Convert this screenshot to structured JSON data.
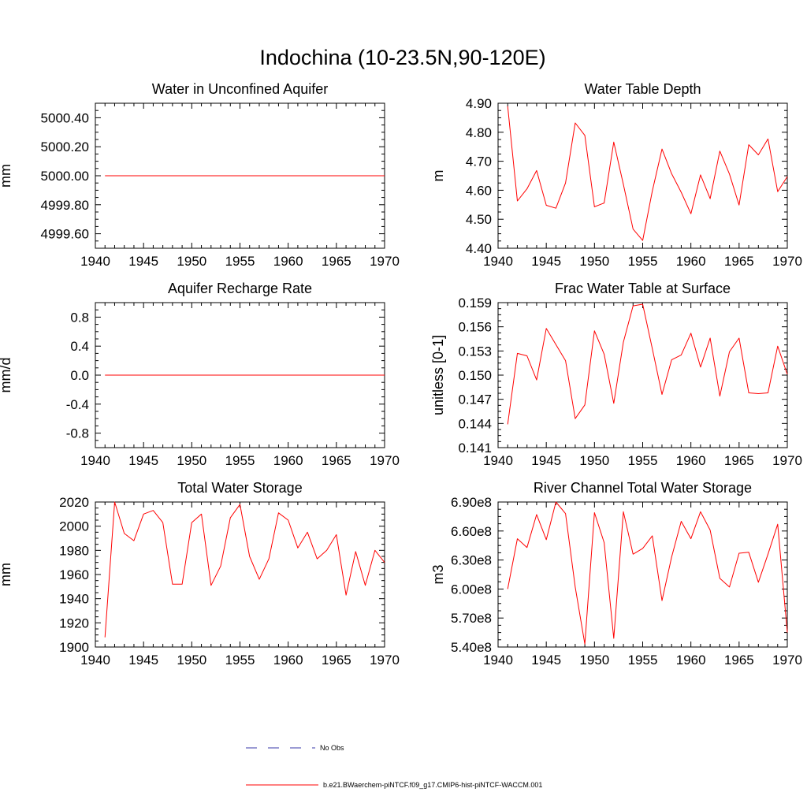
{
  "title": "Indochina (10-23.5N,90-120E)",
  "chart_data": [
    {
      "type": "line",
      "title": "Water in Unconfined Aquifer",
      "ylabel": "mm",
      "xlim": [
        1940,
        1970
      ],
      "ylim": [
        4999.5,
        5000.5
      ],
      "xticks": [
        "1940",
        "1945",
        "1950",
        "1955",
        "1960",
        "1965",
        "1970"
      ],
      "yticks": [
        {
          "value": 4999.6,
          "label": "4999.60"
        },
        {
          "value": 4999.8,
          "label": "4999.80"
        },
        {
          "value": 5000.0,
          "label": "5000.00"
        },
        {
          "value": 5000.2,
          "label": "5000.20"
        },
        {
          "value": 5000.4,
          "label": "5000.40"
        }
      ],
      "x": [
        1941,
        1942,
        1943,
        1944,
        1945,
        1946,
        1947,
        1948,
        1949,
        1950,
        1951,
        1952,
        1953,
        1954,
        1955,
        1956,
        1957,
        1958,
        1959,
        1960,
        1961,
        1962,
        1963,
        1964,
        1965,
        1966,
        1967,
        1968,
        1969,
        1970
      ],
      "series": [
        {
          "values": [
            5000,
            5000,
            5000,
            5000,
            5000,
            5000,
            5000,
            5000,
            5000,
            5000,
            5000,
            5000,
            5000,
            5000,
            5000,
            5000,
            5000,
            5000,
            5000,
            5000,
            5000,
            5000,
            5000,
            5000,
            5000,
            5000,
            5000,
            5000,
            5000,
            5000
          ]
        }
      ]
    },
    {
      "type": "line",
      "title": "Water Table Depth",
      "ylabel": "m",
      "xlim": [
        1940,
        1970
      ],
      "ylim": [
        4.4,
        4.9
      ],
      "xticks": [
        "1940",
        "1945",
        "1950",
        "1955",
        "1960",
        "1965",
        "1970"
      ],
      "yticks": [
        {
          "value": 4.4,
          "label": "4.40"
        },
        {
          "value": 4.5,
          "label": "4.50"
        },
        {
          "value": 4.6,
          "label": "4.60"
        },
        {
          "value": 4.7,
          "label": "4.70"
        },
        {
          "value": 4.8,
          "label": "4.80"
        },
        {
          "value": 4.9,
          "label": "4.90"
        }
      ],
      "x": [
        1941,
        1942,
        1943,
        1944,
        1945,
        1946,
        1947,
        1948,
        1949,
        1950,
        1951,
        1952,
        1953,
        1954,
        1955,
        1956,
        1957,
        1958,
        1959,
        1960,
        1961,
        1962,
        1963,
        1964,
        1965,
        1966,
        1967,
        1968,
        1969,
        1970
      ],
      "series": [
        {
          "values": [
            4.89,
            4.563,
            4.605,
            4.668,
            4.548,
            4.538,
            4.625,
            4.832,
            4.789,
            4.543,
            4.556,
            4.766,
            4.62,
            4.466,
            4.427,
            4.597,
            4.742,
            4.657,
            4.593,
            4.519,
            4.653,
            4.571,
            4.735,
            4.656,
            4.549,
            4.757,
            4.722,
            4.777,
            4.595,
            4.647
          ]
        }
      ]
    },
    {
      "type": "line",
      "title": "Aquifer Recharge Rate",
      "ylabel": "mm/d",
      "xlim": [
        1940,
        1970
      ],
      "ylim": [
        -1.0,
        1.0
      ],
      "xticks": [
        "1940",
        "1945",
        "1950",
        "1955",
        "1960",
        "1965",
        "1970"
      ],
      "yticks": [
        {
          "value": -0.8,
          "label": "-0.8"
        },
        {
          "value": -0.4,
          "label": "-0.4"
        },
        {
          "value": 0.0,
          "label": "0.0"
        },
        {
          "value": 0.4,
          "label": "0.4"
        },
        {
          "value": 0.8,
          "label": "0.8"
        }
      ],
      "x": [
        1941,
        1942,
        1943,
        1944,
        1945,
        1946,
        1947,
        1948,
        1949,
        1950,
        1951,
        1952,
        1953,
        1954,
        1955,
        1956,
        1957,
        1958,
        1959,
        1960,
        1961,
        1962,
        1963,
        1964,
        1965,
        1966,
        1967,
        1968,
        1969,
        1970
      ],
      "series": [
        {
          "values": [
            0,
            0,
            0,
            0,
            0,
            0,
            0,
            0,
            0,
            0,
            0,
            0,
            0,
            0,
            0,
            0,
            0,
            0,
            0,
            0,
            0,
            0,
            0,
            0,
            0,
            0,
            0,
            0,
            0,
            0
          ]
        }
      ]
    },
    {
      "type": "line",
      "title": "Frac Water Table at Surface",
      "ylabel": "unitless [0-1]",
      "xlim": [
        1940,
        1970
      ],
      "ylim": [
        0.141,
        0.159
      ],
      "xticks": [
        "1940",
        "1945",
        "1950",
        "1955",
        "1960",
        "1965",
        "1970"
      ],
      "yticks": [
        {
          "value": 0.141,
          "label": "0.141"
        },
        {
          "value": 0.144,
          "label": "0.144"
        },
        {
          "value": 0.147,
          "label": "0.147"
        },
        {
          "value": 0.15,
          "label": "0.150"
        },
        {
          "value": 0.153,
          "label": "0.153"
        },
        {
          "value": 0.156,
          "label": "0.156"
        },
        {
          "value": 0.159,
          "label": "0.159"
        }
      ],
      "x": [
        1941,
        1942,
        1943,
        1944,
        1945,
        1946,
        1947,
        1948,
        1949,
        1950,
        1951,
        1952,
        1953,
        1954,
        1955,
        1956,
        1957,
        1958,
        1959,
        1960,
        1961,
        1962,
        1963,
        1964,
        1965,
        1966,
        1967,
        1968,
        1969,
        1970
      ],
      "series": [
        {
          "values": [
            0.1439,
            0.1527,
            0.1524,
            0.1494,
            0.1558,
            0.1538,
            0.1518,
            0.1446,
            0.1463,
            0.1555,
            0.1526,
            0.1465,
            0.1541,
            0.1586,
            0.1588,
            0.1533,
            0.1476,
            0.1519,
            0.1525,
            0.1552,
            0.151,
            0.1546,
            0.1474,
            0.1529,
            0.1546,
            0.1478,
            0.1477,
            0.1478,
            0.1536,
            0.1501
          ]
        }
      ]
    },
    {
      "type": "line",
      "title": "Total Water Storage",
      "ylabel": "mm",
      "xlim": [
        1940,
        1970
      ],
      "ylim": [
        1900,
        2020
      ],
      "xticks": [
        "1940",
        "1945",
        "1950",
        "1955",
        "1960",
        "1965",
        "1970"
      ],
      "yticks": [
        {
          "value": 1900,
          "label": "1900"
        },
        {
          "value": 1920,
          "label": "1920"
        },
        {
          "value": 1940,
          "label": "1940"
        },
        {
          "value": 1960,
          "label": "1960"
        },
        {
          "value": 1980,
          "label": "1980"
        },
        {
          "value": 2000,
          "label": "2000"
        },
        {
          "value": 2020,
          "label": "2020"
        }
      ],
      "x": [
        1941,
        1942,
        1943,
        1944,
        1945,
        1946,
        1947,
        1948,
        1949,
        1950,
        1951,
        1952,
        1953,
        1954,
        1955,
        1956,
        1957,
        1958,
        1959,
        1960,
        1961,
        1962,
        1963,
        1964,
        1965,
        1966,
        1967,
        1968,
        1969,
        1970
      ],
      "series": [
        {
          "values": [
            1908,
            2020,
            1994,
            1988,
            2010,
            2013,
            2003,
            1952,
            1952,
            2003,
            2010,
            1951,
            1967,
            2007,
            2018,
            1975,
            1956,
            1973,
            2011,
            2005,
            1982,
            1995,
            1973,
            1980,
            1993,
            1943,
            1979,
            1951,
            1980,
            1970
          ]
        }
      ]
    },
    {
      "type": "line",
      "title": "River Channel Total Water Storage",
      "ylabel": "m3",
      "xlim": [
        1940,
        1970
      ],
      "ylim": [
        540000000,
        690000000
      ],
      "xticks": [
        "1940",
        "1945",
        "1950",
        "1955",
        "1960",
        "1965",
        "1970"
      ],
      "yticks": [
        {
          "value": 540000000,
          "label": "5.40e8"
        },
        {
          "value": 570000000,
          "label": "5.70e8"
        },
        {
          "value": 600000000,
          "label": "6.00e8"
        },
        {
          "value": 630000000,
          "label": "6.30e8"
        },
        {
          "value": 660000000,
          "label": "6.60e8"
        },
        {
          "value": 690000000,
          "label": "6.90e8"
        }
      ],
      "x": [
        1941,
        1942,
        1943,
        1944,
        1945,
        1946,
        1947,
        1948,
        1949,
        1950,
        1951,
        1952,
        1953,
        1954,
        1955,
        1956,
        1957,
        1958,
        1959,
        1960,
        1961,
        1962,
        1963,
        1964,
        1965,
        1966,
        1967,
        1968,
        1969,
        1970
      ],
      "series": [
        {
          "values": [
            600000000,
            652000000,
            643000000,
            677000000,
            651000000,
            690000000,
            678000000,
            602000000,
            543000000,
            679000000,
            648000000,
            549000000,
            680000000,
            636000000,
            642000000,
            655000000,
            588000000,
            633000000,
            670000000,
            652000000,
            680000000,
            661000000,
            611000000,
            602000000,
            637000000,
            638000000,
            607000000,
            636000000,
            667000000,
            555000000
          ]
        }
      ]
    }
  ],
  "legend": [
    {
      "label": "No Obs",
      "color": "#3a3aa8",
      "style": "dashed"
    },
    {
      "label": "b.e21.BWaerchem-piNTCF.f09_g17.CMIP6-hist-piNTCF-WACCM.001",
      "color": "#ff0000",
      "style": "solid"
    }
  ],
  "colors": {
    "series": "#ff0000",
    "axis": "#000000"
  }
}
